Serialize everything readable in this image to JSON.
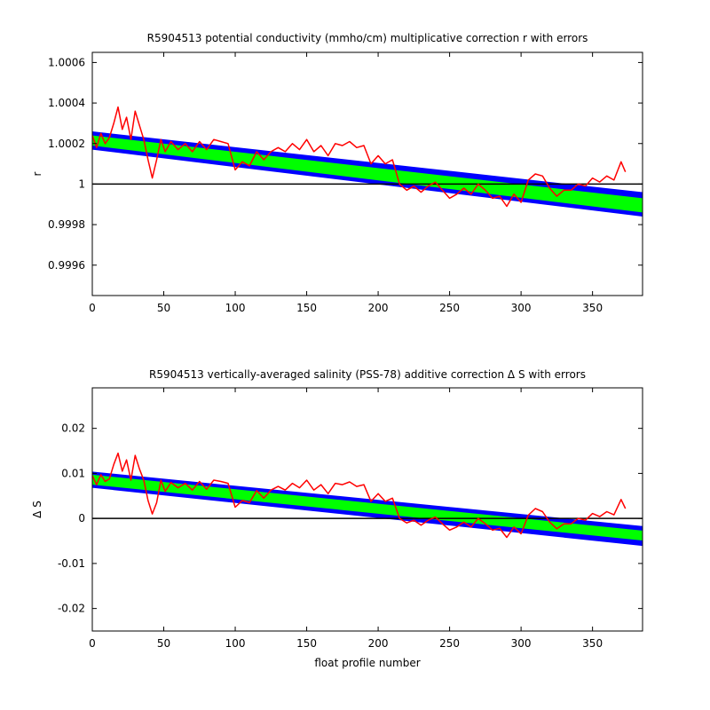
{
  "chart_data": [
    {
      "type": "line",
      "title": "R5904513 potential conductivity (mmho/cm) multiplicative correction r with errors",
      "xlabel": "",
      "ylabel": "r",
      "xlim": [
        0,
        385
      ],
      "ylim": [
        0.99945,
        1.00065
      ],
      "xticks": [
        0,
        50,
        100,
        150,
        200,
        250,
        300,
        350
      ],
      "xtick_labels": [
        "0",
        "50",
        "100",
        "150",
        "200",
        "250",
        "300",
        "350"
      ],
      "yticks": [
        0.9996,
        0.9998,
        1.0,
        1.0002,
        1.0004,
        1.0006
      ],
      "ytick_labels": [
        "0.9996",
        "0.9998",
        "1",
        "1.0002",
        "1.0004",
        "1.0006"
      ],
      "reference_line": 1.0,
      "colors": {
        "measured": "#ff0000",
        "fit": "#00ff00",
        "error": "#0000ff",
        "reference": "#000000"
      },
      "band": {
        "x": [
          0,
          385
        ],
        "fit_lower": [
          1.00019,
          0.99986
        ],
        "fit_upper": [
          1.00024,
          0.99993
        ],
        "err_lower": [
          1.00017,
          0.99984
        ],
        "err_upper": [
          1.00026,
          0.99996
        ]
      },
      "series": [
        {
          "x": [
            0,
            3,
            6,
            9,
            12,
            15,
            18,
            21,
            24,
            27,
            30,
            33,
            36,
            39,
            42,
            45,
            48,
            51,
            55,
            60,
            65,
            70,
            75,
            80,
            85,
            90,
            95,
            100,
            105,
            110,
            115,
            120,
            125,
            130,
            135,
            140,
            145,
            150,
            155,
            160,
            165,
            170,
            175,
            180,
            185,
            190,
            195,
            200,
            205,
            210,
            215,
            220,
            225,
            230,
            235,
            240,
            245,
            250,
            255,
            260,
            265,
            270,
            275,
            280,
            285,
            290,
            295,
            300,
            305,
            310,
            315,
            320,
            325,
            330,
            335,
            340,
            345,
            350,
            355,
            360,
            365,
            370,
            373
          ],
          "values": [
            1.00024,
            1.00018,
            1.00025,
            1.0002,
            1.00023,
            1.0003,
            1.00038,
            1.00027,
            1.00033,
            1.00022,
            1.00036,
            1.00029,
            1.00022,
            1.00012,
            1.00003,
            1.00012,
            1.00022,
            1.00016,
            1.00021,
            1.00017,
            1.0002,
            1.00016,
            1.00021,
            1.00017,
            1.00022,
            1.00021,
            1.0002,
            1.00007,
            1.00011,
            1.00009,
            1.00016,
            1.00012,
            1.00016,
            1.00018,
            1.00016,
            1.0002,
            1.00017,
            1.00022,
            1.00016,
            1.00019,
            1.00014,
            1.0002,
            1.00019,
            1.00021,
            1.00018,
            1.00019,
            1.0001,
            1.00014,
            1.0001,
            1.00012,
            1.0,
            0.99997,
            0.99999,
            0.99996,
            0.99999,
            1.00001,
            0.99997,
            0.99993,
            0.99995,
            0.99998,
            0.99995,
            1.0,
            0.99997,
            0.99993,
            0.99994,
            0.99989,
            0.99995,
            0.99991,
            1.00002,
            1.00005,
            1.00004,
            0.99998,
            0.99994,
            0.99997,
            0.99997,
            1.0,
            0.99999,
            1.00003,
            1.00001,
            1.00004,
            1.00002,
            1.00011,
            1.00006
          ]
        }
      ]
    },
    {
      "type": "line",
      "title": "R5904513 vertically-averaged salinity (PSS-78) additive correction Δ S with errors",
      "xlabel": "float profile number",
      "ylabel": "Δ S",
      "xlim": [
        0,
        385
      ],
      "ylim": [
        -0.025,
        0.029
      ],
      "xticks": [
        0,
        50,
        100,
        150,
        200,
        250,
        300,
        350
      ],
      "xtick_labels": [
        "0",
        "50",
        "100",
        "150",
        "200",
        "250",
        "300",
        "350"
      ],
      "yticks": [
        -0.02,
        -0.01,
        0,
        0.01,
        0.02
      ],
      "ytick_labels": [
        "-0.02",
        "-0.01",
        "0",
        "0.01",
        "0.02"
      ],
      "reference_line": 0,
      "colors": {
        "measured": "#ff0000",
        "fit": "#00ff00",
        "error": "#0000ff",
        "reference": "#000000"
      },
      "band": {
        "x": [
          0,
          385
        ],
        "fit_lower": [
          0.0075,
          -0.0049
        ],
        "fit_upper": [
          0.0097,
          -0.0027
        ],
        "err_lower": [
          0.0068,
          -0.0061
        ],
        "err_upper": [
          0.0104,
          -0.0017
        ]
      },
      "series": [
        {
          "x": [
            0,
            3,
            6,
            9,
            12,
            15,
            18,
            21,
            24,
            27,
            30,
            33,
            36,
            39,
            42,
            45,
            48,
            51,
            55,
            60,
            65,
            70,
            75,
            80,
            85,
            90,
            95,
            100,
            105,
            110,
            115,
            120,
            125,
            130,
            135,
            140,
            145,
            150,
            155,
            160,
            165,
            170,
            175,
            180,
            185,
            190,
            195,
            200,
            205,
            210,
            215,
            220,
            225,
            230,
            235,
            240,
            245,
            250,
            255,
            260,
            265,
            270,
            275,
            280,
            285,
            290,
            295,
            300,
            305,
            310,
            315,
            320,
            325,
            330,
            335,
            340,
            345,
            350,
            355,
            360,
            365,
            370,
            373
          ],
          "values": [
            0.0095,
            0.0075,
            0.0097,
            0.0082,
            0.0088,
            0.012,
            0.0145,
            0.0105,
            0.013,
            0.0085,
            0.014,
            0.011,
            0.0085,
            0.004,
            0.001,
            0.0035,
            0.0085,
            0.006,
            0.008,
            0.0068,
            0.0078,
            0.0063,
            0.0082,
            0.0065,
            0.0085,
            0.0082,
            0.0078,
            0.0025,
            0.004,
            0.0035,
            0.0062,
            0.0045,
            0.0063,
            0.0071,
            0.0063,
            0.0078,
            0.0068,
            0.0085,
            0.0063,
            0.0075,
            0.0055,
            0.0078,
            0.0075,
            0.0081,
            0.0071,
            0.0075,
            0.0038,
            0.0055,
            0.0038,
            0.0045,
            0.0,
            -0.001,
            -0.0004,
            -0.0015,
            -0.0004,
            0.0003,
            -0.0012,
            -0.0026,
            -0.0019,
            -0.0008,
            -0.0019,
            0.0,
            -0.0012,
            -0.0026,
            -0.0022,
            -0.0042,
            -0.0019,
            -0.0034,
            0.0007,
            0.0022,
            0.0015,
            -0.0008,
            -0.0023,
            -0.0012,
            -0.0012,
            0.0,
            -0.0004,
            0.0011,
            0.0004,
            0.0015,
            0.0008,
            0.0042,
            0.0022
          ]
        }
      ]
    }
  ]
}
